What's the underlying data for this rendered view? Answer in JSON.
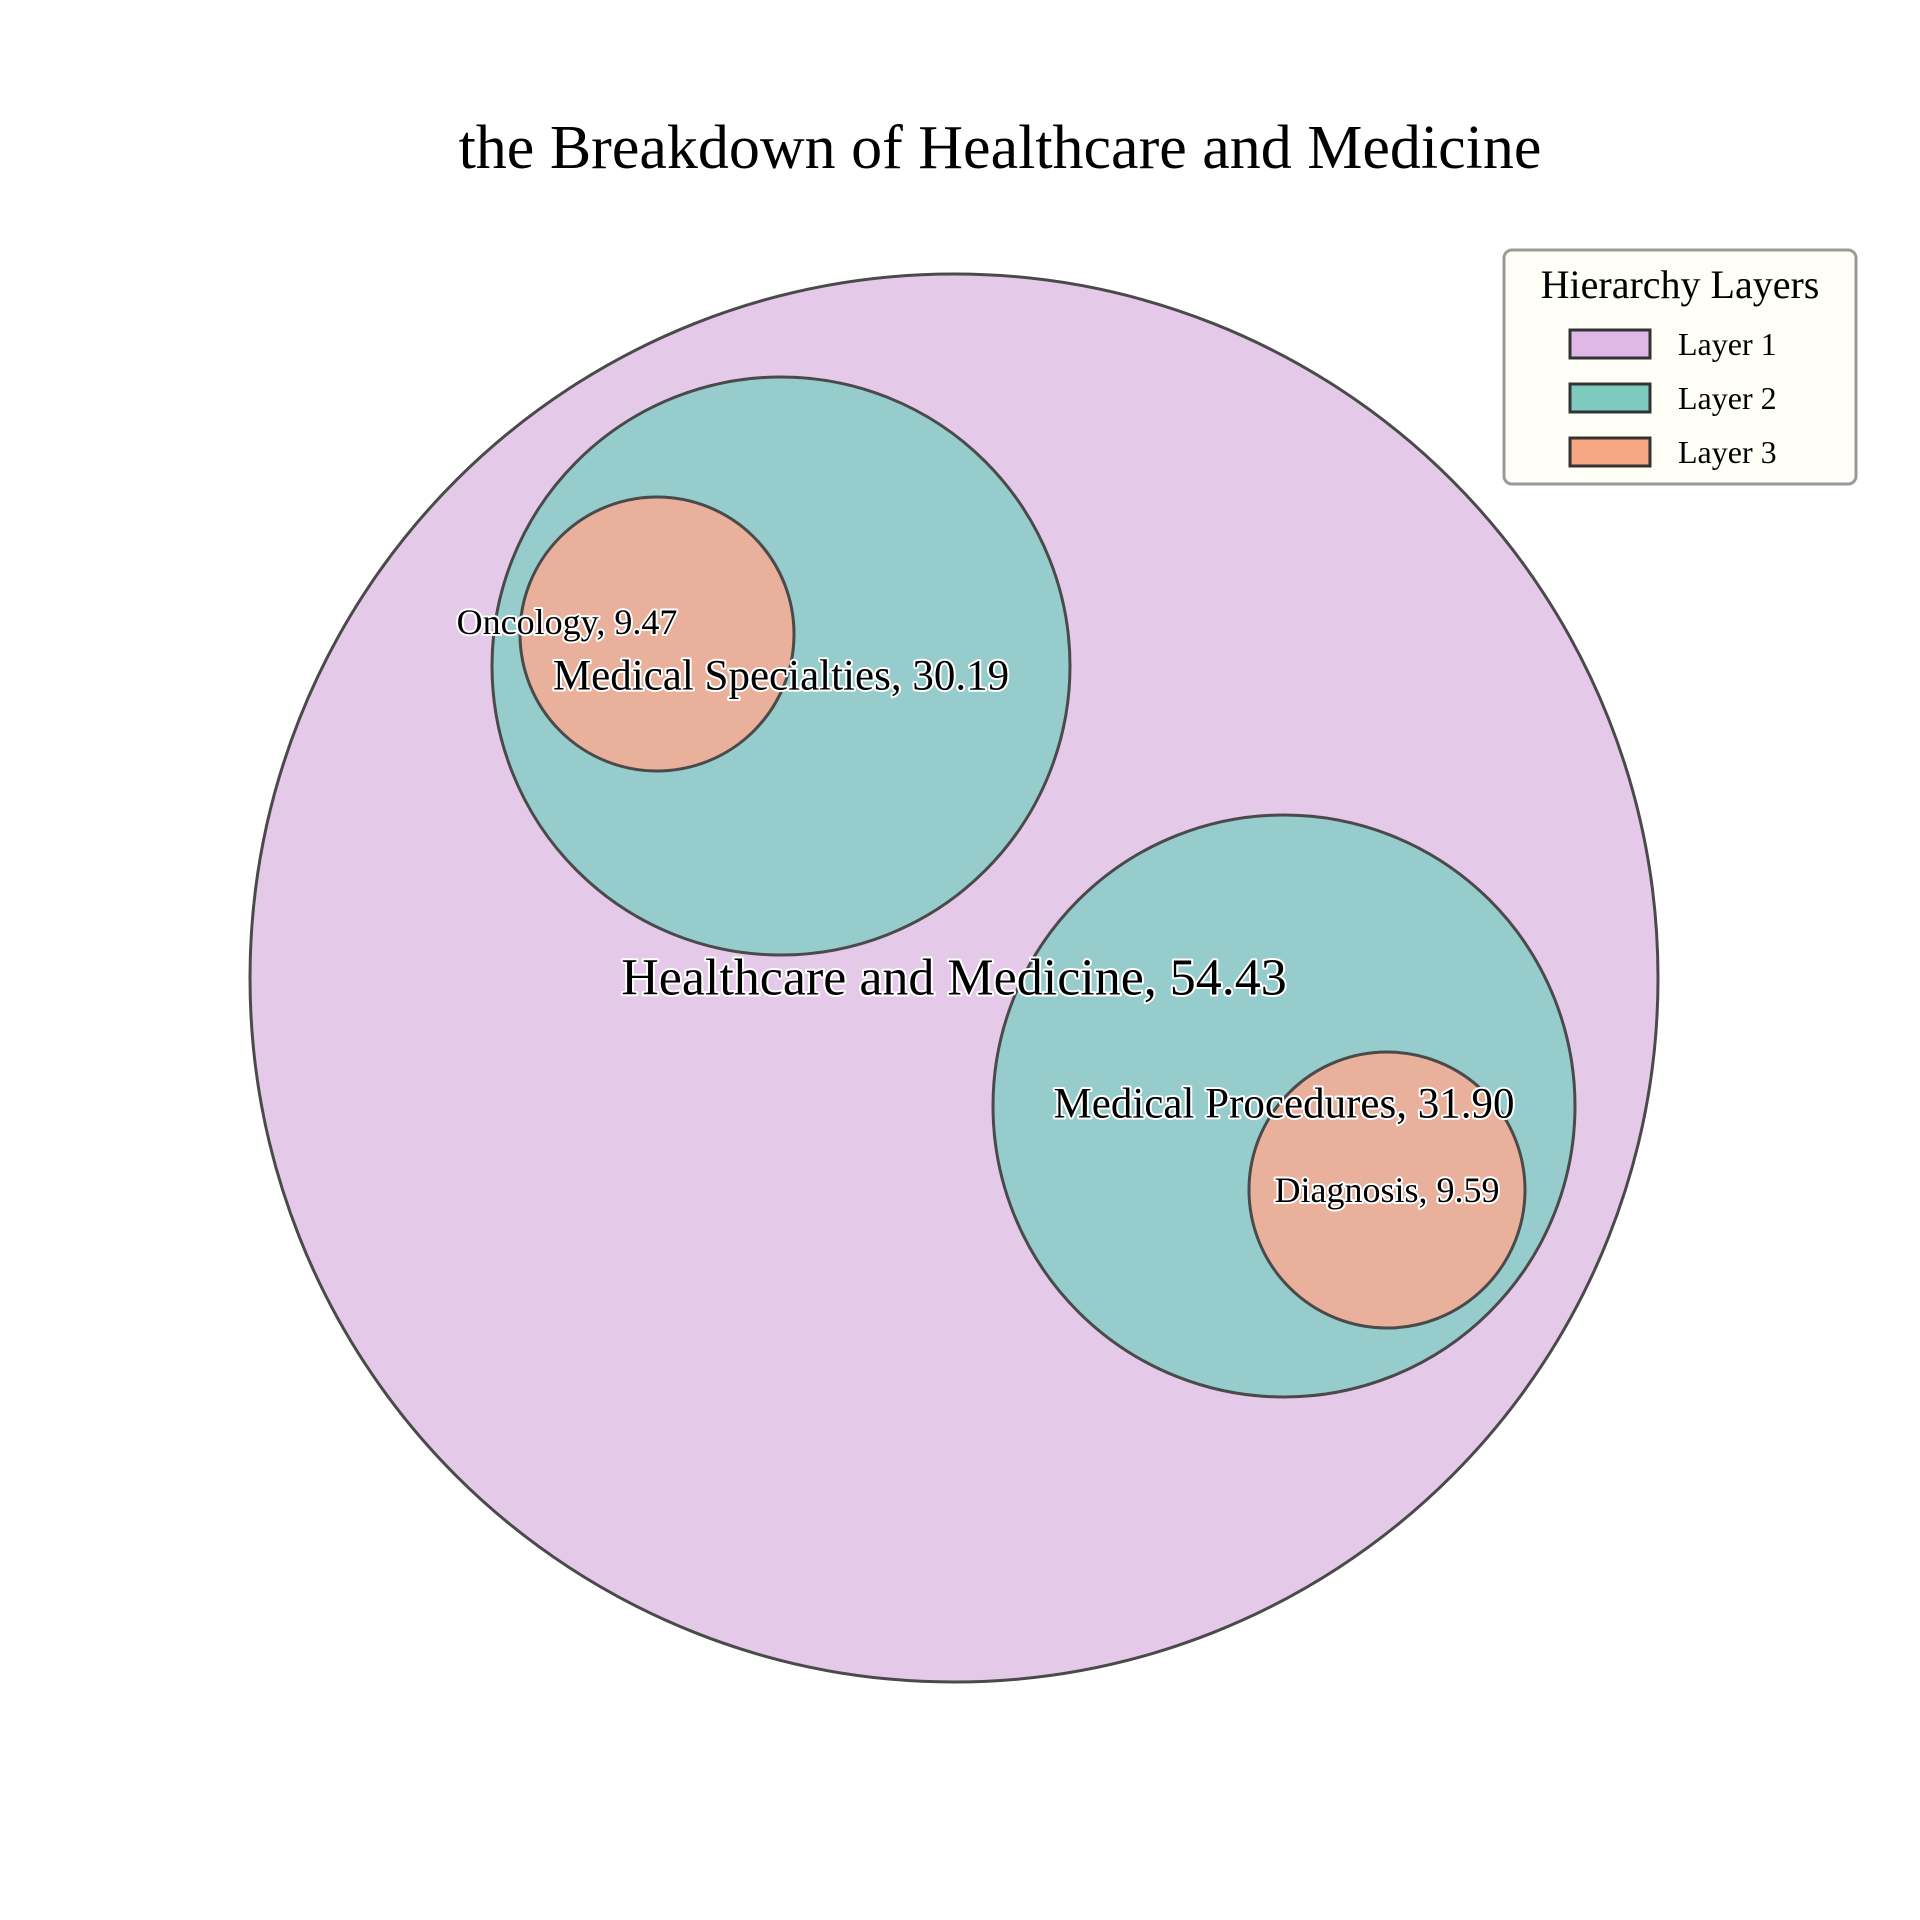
{
  "chart_data": {
    "type": "circle-packing",
    "title": "the Breakdown of Healthcare and Medicine",
    "nodes": [
      {
        "id": "root",
        "name": "Healthcare and Medicine",
        "value": 54.43,
        "value_label": "54.43",
        "layer": 1,
        "parent": null
      },
      {
        "id": "spec",
        "name": "Medical Specialties",
        "value": 30.19,
        "value_label": "30.19",
        "layer": 2,
        "parent": "root"
      },
      {
        "id": "proc",
        "name": "Medical Procedures",
        "value": 31.9,
        "value_label": "31.90",
        "layer": 2,
        "parent": "root"
      },
      {
        "id": "onco",
        "name": "Oncology",
        "value": 9.47,
        "value_label": "9.47",
        "layer": 3,
        "parent": "spec"
      },
      {
        "id": "diag",
        "name": "Diagnosis",
        "value": 9.59,
        "value_label": "9.59",
        "layer": 3,
        "parent": "proc"
      }
    ],
    "legend": {
      "title": "Hierarchy Layers",
      "placement": "top-right",
      "items": [
        {
          "label": "Layer 1",
          "layer": 1
        },
        {
          "label": "Layer 2",
          "layer": 2
        },
        {
          "label": "Layer 3",
          "layer": 3
        }
      ]
    },
    "colors": {
      "layer_1": "#e5c9e9",
      "layer_2": "#96cccb",
      "layer_3": "#e9b09c",
      "legend_layer_1": "#e0b8e8",
      "legend_layer_2": "#7fcac0",
      "legend_layer_3": "#f7a684",
      "outline": "#4a4a4a"
    }
  }
}
